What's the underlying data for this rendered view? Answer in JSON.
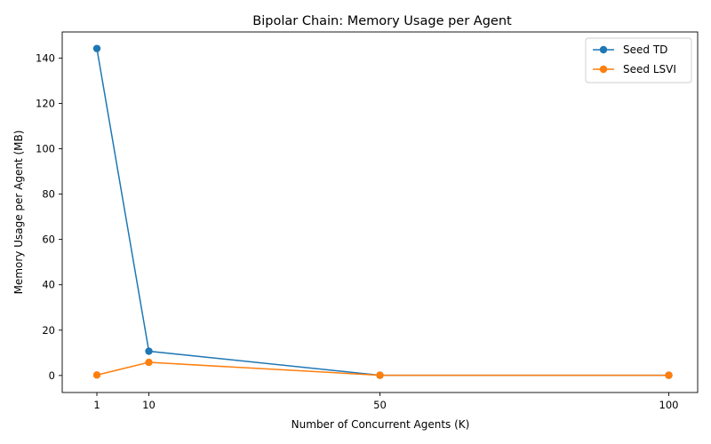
{
  "chart_data": {
    "type": "line",
    "title": "Bipolar Chain: Memory Usage per Agent",
    "xlabel": "Number of Concurrent Agents (K)",
    "ylabel": "Memory Usage per Agent (MB)",
    "x": [
      1,
      10,
      50,
      100
    ],
    "xlim": [
      -5.0,
      105.0
    ],
    "ylim": [
      -7.5,
      151.5
    ],
    "xticks": [
      1,
      10,
      50,
      100
    ],
    "yticks": [
      0,
      20,
      40,
      60,
      80,
      100,
      120,
      140
    ],
    "grid": false,
    "legend_position": "top-right",
    "series": [
      {
        "name": "Seed TD",
        "color": "#1f77b4",
        "marker": "circle",
        "values": [
          144.2,
          10.7,
          0.1,
          0.1
        ]
      },
      {
        "name": "Seed LSVI",
        "color": "#ff7f0e",
        "marker": "circle",
        "values": [
          0.2,
          5.8,
          0.1,
          0.1
        ]
      }
    ]
  }
}
